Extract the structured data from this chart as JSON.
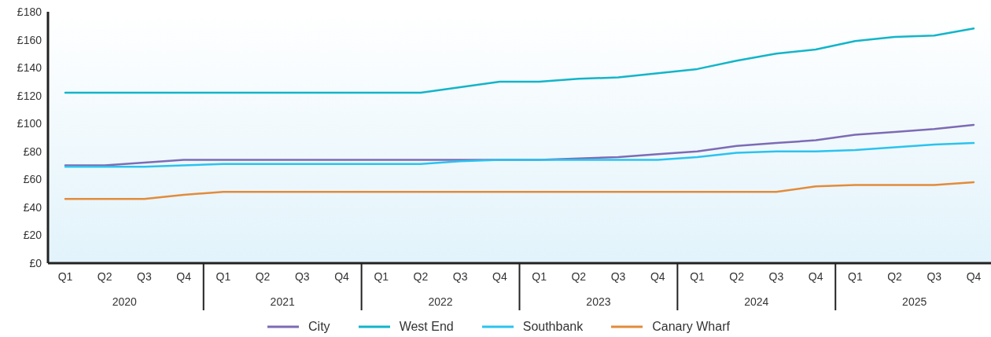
{
  "chart_data": {
    "type": "line",
    "categories": [
      "Q1",
      "Q2",
      "Q3",
      "Q4",
      "Q1",
      "Q2",
      "Q3",
      "Q4",
      "Q1",
      "Q2",
      "Q3",
      "Q4",
      "Q1",
      "Q2",
      "Q3",
      "Q4",
      "Q1",
      "Q2",
      "Q3",
      "Q4",
      "Q1",
      "Q2",
      "Q3",
      "Q4"
    ],
    "series": [
      {
        "name": "City",
        "color": "#7d6bb5",
        "values": [
          70,
          70,
          72,
          74,
          74,
          74,
          74,
          74,
          74,
          74,
          74,
          74,
          74,
          75,
          76,
          78,
          80,
          84,
          86,
          88,
          92,
          94,
          96,
          99
        ]
      },
      {
        "name": "West End",
        "color": "#12b5c9",
        "values": [
          122,
          122,
          122,
          122,
          122,
          122,
          122,
          122,
          122,
          122,
          126,
          130,
          130,
          132,
          133,
          136,
          139,
          145,
          150,
          153,
          159,
          162,
          163,
          168
        ]
      },
      {
        "name": "Southbank",
        "color": "#2bc3ef",
        "values": [
          69,
          69,
          69,
          70,
          71,
          71,
          71,
          71,
          71,
          71,
          73,
          74,
          74,
          74,
          74,
          74,
          76,
          79,
          80,
          80,
          81,
          83,
          85,
          86
        ]
      },
      {
        "name": "Canary Wharf",
        "color": "#e38b3a",
        "values": [
          46,
          46,
          46,
          49,
          51,
          51,
          51,
          51,
          51,
          51,
          51,
          51,
          51,
          51,
          51,
          51,
          51,
          51,
          51,
          55,
          56,
          56,
          56,
          58
        ]
      }
    ],
    "annotations": [
      "2020",
      "2021",
      "2022",
      "2023",
      "2024",
      "2025"
    ],
    "ylim": [
      0,
      180
    ],
    "yticks": [
      {
        "value": 0,
        "label": "£0"
      },
      {
        "value": 20,
        "label": "£20"
      },
      {
        "value": 40,
        "label": "£40"
      },
      {
        "value": 60,
        "label": "£60"
      },
      {
        "value": 80,
        "label": "£80"
      },
      {
        "value": 100,
        "label": "£100"
      },
      {
        "value": 120,
        "label": "£120"
      },
      {
        "value": 140,
        "label": "£140"
      },
      {
        "value": 160,
        "label": "£160"
      },
      {
        "value": 180,
        "label": "£180"
      }
    ],
    "legend": "bottom",
    "marker": "none",
    "line_style": "solid"
  }
}
